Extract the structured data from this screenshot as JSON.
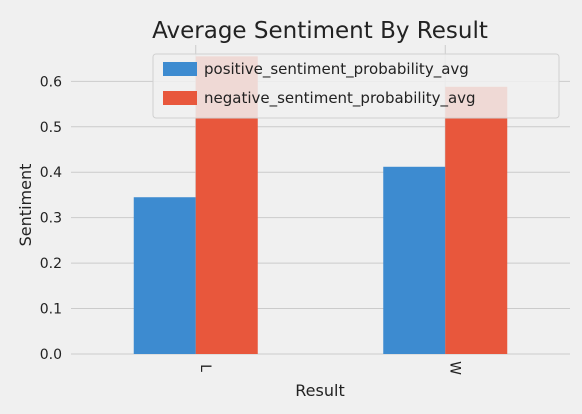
{
  "chart_data": {
    "type": "bar",
    "title": "Average Sentiment By Result",
    "xlabel": "Result",
    "ylabel": "Sentiment",
    "categories": [
      "L",
      "W"
    ],
    "series": [
      {
        "name": "positive_sentiment_probability_avg",
        "values": [
          0.345,
          0.412
        ],
        "color": "#3d8bd0"
      },
      {
        "name": "negative_sentiment_probability_avg",
        "values": [
          0.655,
          0.588
        ],
        "color": "#e8573c"
      }
    ],
    "ylim": [
      0,
      0.68
    ],
    "yticks": [
      "0.0",
      "0.1",
      "0.2",
      "0.3",
      "0.4",
      "0.5",
      "0.6"
    ],
    "grid": true,
    "legend": "top-right",
    "style": {
      "background": "#f0f0f0",
      "grid_color": "#cbcbcb",
      "text_color": "#222222"
    }
  }
}
